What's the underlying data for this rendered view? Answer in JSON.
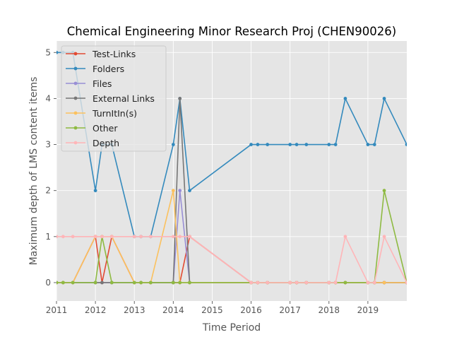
{
  "chart_data": {
    "type": "line",
    "title": "Chemical Engineering Minor Research Proj (CHEN90026)",
    "xlabel": "Time Period",
    "ylabel": "Maximum depth of LMS content items",
    "xlim": [
      2011.0,
      2020.0
    ],
    "ylim": [
      -0.4,
      5.25
    ],
    "xticks": [
      2011,
      2012,
      2013,
      2014,
      2015,
      2016,
      2017,
      2018,
      2019
    ],
    "yticks": [
      0,
      1,
      2,
      3,
      4,
      5
    ],
    "grid": true,
    "legend_position": "top-left",
    "x": [
      2011.0,
      2011.17,
      2011.42,
      2012.0,
      2012.17,
      2012.42,
      2013.0,
      2013.17,
      2013.42,
      2014.0,
      2014.17,
      2014.42,
      2016.0,
      2016.17,
      2016.42,
      2017.0,
      2017.17,
      2017.42,
      2018.0,
      2018.17,
      2018.42,
      2019.0,
      2019.17,
      2019.42,
      2020.0
    ],
    "series": [
      {
        "name": "Test-Links",
        "color": "#e24a33",
        "values": [
          0,
          0,
          0,
          1,
          0,
          1,
          0,
          0,
          0,
          0,
          0,
          1,
          0,
          0,
          0,
          0,
          0,
          0,
          0,
          0,
          0,
          0,
          0,
          0,
          0
        ]
      },
      {
        "name": "Folders",
        "color": "#348abd",
        "values": [
          5,
          5,
          5,
          2,
          3,
          3,
          1,
          1,
          1,
          3,
          4,
          2,
          3,
          3,
          3,
          3,
          3,
          3,
          3,
          3,
          4,
          3,
          3,
          4,
          3
        ]
      },
      {
        "name": "Files",
        "color": "#988ed5",
        "values": [
          0,
          0,
          0,
          0,
          0,
          0,
          0,
          0,
          0,
          0,
          2,
          0,
          0,
          0,
          0,
          0,
          0,
          0,
          0,
          0,
          0,
          0,
          0,
          0,
          0
        ]
      },
      {
        "name": "External Links",
        "color": "#777777",
        "values": [
          0,
          0,
          0,
          0,
          0,
          0,
          0,
          0,
          0,
          0,
          4,
          0,
          0,
          0,
          0,
          0,
          0,
          0,
          0,
          0,
          0,
          0,
          0,
          0,
          0
        ]
      },
      {
        "name": "TurnItIn(s)",
        "color": "#fbc15e",
        "values": [
          0,
          0,
          0,
          1,
          1,
          1,
          0,
          0,
          0,
          2,
          0,
          0,
          0,
          0,
          0,
          0,
          0,
          0,
          0,
          0,
          0,
          0,
          0,
          0,
          0
        ]
      },
      {
        "name": "Other",
        "color": "#8eba42",
        "values": [
          0,
          0,
          0,
          0,
          1,
          0,
          0,
          0,
          0,
          0,
          0,
          0,
          0,
          0,
          0,
          0,
          0,
          0,
          0,
          0,
          0,
          0,
          0,
          2,
          0
        ]
      },
      {
        "name": "Depth",
        "color": "#ffb5b8",
        "values": [
          1,
          1,
          1,
          1,
          1,
          1,
          1,
          1,
          1,
          1,
          1,
          1,
          0,
          0,
          0,
          0,
          0,
          0,
          0,
          0,
          1,
          0,
          0,
          1,
          0
        ]
      }
    ]
  }
}
